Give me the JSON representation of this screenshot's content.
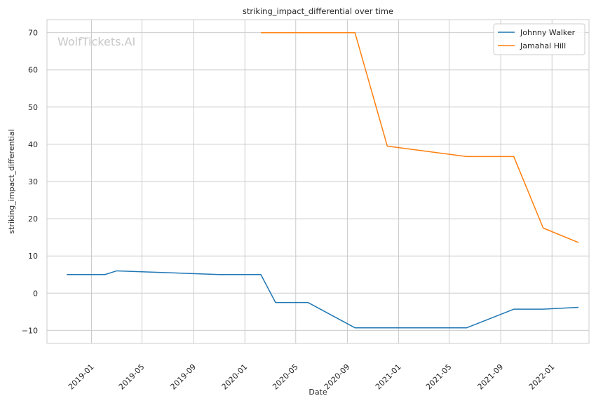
{
  "chart_data": {
    "type": "line",
    "title": "striking_impact_differential over time",
    "xlabel": "Date",
    "ylabel": "striking_impact_differential",
    "watermark": "WolfTickets.AI",
    "grid": true,
    "legend_position": "top-right",
    "xlim": [
      "2018-09-17",
      "2022-03-30"
    ],
    "ylim": [
      -13.5,
      73.5
    ],
    "x_ticks": [
      "2019-01",
      "2019-05",
      "2019-09",
      "2020-01",
      "2020-05",
      "2020-09",
      "2021-01",
      "2021-05",
      "2021-09",
      "2022-01"
    ],
    "y_ticks": [
      -10,
      0,
      10,
      20,
      30,
      40,
      50,
      60,
      70
    ],
    "series": [
      {
        "name": "Johnny Walker",
        "color": "#1f77b4",
        "points": [
          {
            "x": "2018-11-03",
            "y": 5
          },
          {
            "x": "2019-02-02",
            "y": 5
          },
          {
            "x": "2019-03-02",
            "y": 6
          },
          {
            "x": "2019-11-02",
            "y": 5
          },
          {
            "x": "2020-02-08",
            "y": 5
          },
          {
            "x": "2020-03-14",
            "y": -2.5
          },
          {
            "x": "2020-05-30",
            "y": -2.5
          },
          {
            "x": "2020-09-19",
            "y": -9.3
          },
          {
            "x": "2021-06-12",
            "y": -9.3
          },
          {
            "x": "2021-10-02",
            "y": -4.3
          },
          {
            "x": "2021-12-11",
            "y": -4.3
          },
          {
            "x": "2022-03-05",
            "y": -3.8
          }
        ]
      },
      {
        "name": "Jamahal Hill",
        "color": "#ff7f0e",
        "points": [
          {
            "x": "2020-02-08",
            "y": 70
          },
          {
            "x": "2020-09-19",
            "y": 70
          },
          {
            "x": "2020-12-05",
            "y": 39.5
          },
          {
            "x": "2021-06-12",
            "y": 36.7
          },
          {
            "x": "2021-10-02",
            "y": 36.7
          },
          {
            "x": "2021-12-11",
            "y": 17.5
          },
          {
            "x": "2022-03-05",
            "y": 13.6
          }
        ]
      }
    ]
  }
}
